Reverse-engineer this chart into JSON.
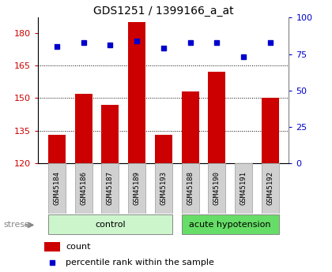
{
  "title": "GDS1251 / 1399166_a_at",
  "samples": [
    "GSM45184",
    "GSM45186",
    "GSM45187",
    "GSM45189",
    "GSM45193",
    "GSM45188",
    "GSM45190",
    "GSM45191",
    "GSM45192"
  ],
  "counts": [
    133,
    152,
    147,
    185,
    133,
    153,
    162,
    120,
    150
  ],
  "percentiles": [
    80,
    83,
    81,
    84,
    79,
    83,
    83,
    73,
    83
  ],
  "bar_color": "#cc0000",
  "dot_color": "#0000cc",
  "ylim_left": [
    120,
    187
  ],
  "ylim_right": [
    0,
    100
  ],
  "yticks_left": [
    120,
    135,
    150,
    165,
    180
  ],
  "yticks_right": [
    0,
    25,
    50,
    75,
    100
  ],
  "grid_lines": [
    135,
    150,
    165
  ],
  "bg_color": "#ffffff",
  "title_fontsize": 10,
  "tick_color_left": "#cc0000",
  "tick_color_right": "#0000cc",
  "group_control_color": "#ccf5cc",
  "group_acute_color": "#66dd66",
  "label_box_color": "#d0d0d0",
  "label_box_edge": "#aaaaaa",
  "stress_color": "#888888"
}
